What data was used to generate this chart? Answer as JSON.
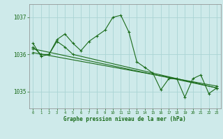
{
  "title": "Graphe pression niveau de la mer (hPa)",
  "bg_color": "#ceeaea",
  "grid_color": "#aad4d4",
  "line_color": "#1a6b1a",
  "marker_color": "#1a6b1a",
  "xlim": [
    -0.5,
    23.5
  ],
  "ylim": [
    1034.55,
    1037.35
  ],
  "yticks": [
    1035,
    1036,
    1037
  ],
  "xticks": [
    0,
    1,
    2,
    3,
    4,
    5,
    6,
    7,
    8,
    9,
    10,
    11,
    12,
    13,
    14,
    15,
    16,
    17,
    18,
    19,
    20,
    21,
    22,
    23
  ],
  "series": [
    {
      "x": [
        0,
        1,
        2,
        3,
        4,
        5,
        6,
        7,
        8,
        9,
        10,
        11,
        12,
        13,
        14,
        15,
        16,
        17,
        18,
        19,
        20,
        21,
        22,
        23
      ],
      "y": [
        1036.3,
        1035.95,
        1036.0,
        1036.4,
        1036.55,
        1036.3,
        1036.1,
        1036.35,
        1036.5,
        1036.65,
        1037.0,
        1037.05,
        1036.6,
        1035.8,
        1035.65,
        1035.5,
        1035.05,
        1035.35,
        1035.35,
        1034.85,
        1035.35,
        1035.45,
        1034.95,
        1035.1
      ]
    },
    {
      "x": [
        0,
        1,
        2,
        3,
        4,
        5,
        23
      ],
      "y": [
        1036.2,
        1036.0,
        1036.0,
        1036.35,
        1036.2,
        1036.0,
        1035.1
      ]
    },
    {
      "x": [
        0,
        23
      ],
      "y": [
        1036.15,
        1035.1
      ]
    },
    {
      "x": [
        0,
        23
      ],
      "y": [
        1036.05,
        1035.15
      ]
    }
  ]
}
